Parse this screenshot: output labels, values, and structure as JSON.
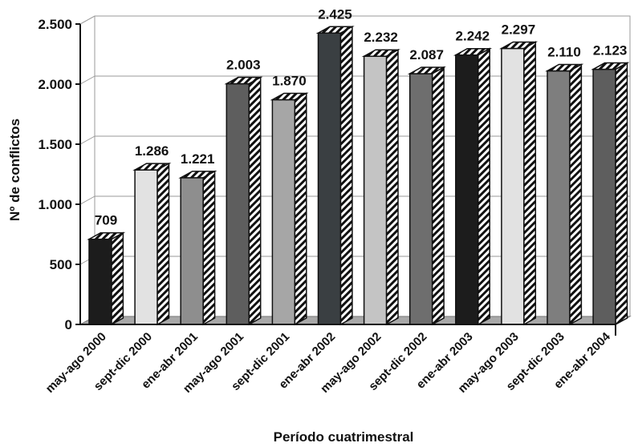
{
  "chart_data": {
    "type": "bar",
    "title": "",
    "xlabel": "Período cuatrimestral",
    "ylabel": "Nº de conflictos",
    "ylim": [
      0,
      2500
    ],
    "yticks": [
      0,
      500,
      1000,
      1500,
      2000,
      2500
    ],
    "ytick_labels": [
      "0",
      "500",
      "1.000",
      "1.500",
      "2.000",
      "2.500"
    ],
    "grid": true,
    "categories": [
      "may-ago 2000",
      "sept-dic 2000",
      "ene-abr 2001",
      "may-ago 2001",
      "sept-dic 2001",
      "ene-abr 2002",
      "may-ago 2002",
      "sept-dic 2002",
      "ene-abr 2003",
      "may-ago 2003",
      "sept-dic 2003",
      "ene-abr 2004"
    ],
    "values": [
      709,
      1286,
      1221,
      2003,
      1870,
      2425,
      2232,
      2087,
      2242,
      2297,
      2110,
      2123
    ],
    "value_labels": [
      "709",
      "1.286",
      "1.221",
      "2.003",
      "1.870",
      "2.425",
      "2.232",
      "2.087",
      "2.242",
      "2.297",
      "2.110",
      "2.123"
    ],
    "colors": [
      "#1c1c1c",
      "#e2e2e2",
      "#8e8e8e",
      "#5e5e5e",
      "#a6a6a6",
      "#3a3f42",
      "#c4c4c4",
      "#6e6e6e",
      "#1c1c1c",
      "#e2e2e2",
      "#7e7e7e",
      "#5e5e5e"
    ]
  }
}
